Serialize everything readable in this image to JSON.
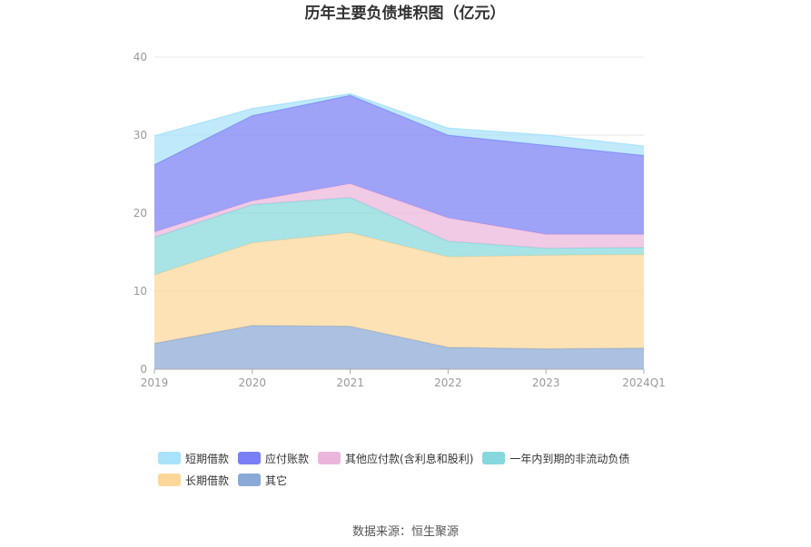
{
  "chart_data": {
    "type": "area",
    "stacked": true,
    "title": "历年主要负债堆积图（亿元）",
    "categories": [
      "2019",
      "2020",
      "2021",
      "2022",
      "2023",
      "2024Q1"
    ],
    "y_ticks": [
      "0",
      "10",
      "20",
      "30",
      "40"
    ],
    "ylim": [
      0,
      40
    ],
    "grid": true,
    "legend_position": "bottom",
    "series": [
      {
        "name": "其它",
        "color": "#8aa9d6",
        "values": [
          3.3,
          5.6,
          5.5,
          2.8,
          2.6,
          2.7
        ]
      },
      {
        "name": "长期借款",
        "color": "#fcd79a",
        "values": [
          8.8,
          10.6,
          12.0,
          11.6,
          12.0,
          12.0
        ]
      },
      {
        "name": "一年内到期的非流动负债",
        "color": "#86d8dc",
        "values": [
          4.8,
          4.9,
          4.5,
          2.0,
          0.9,
          0.9
        ]
      },
      {
        "name": "其他应付款(含利息和股利)",
        "color": "#ebb6db",
        "values": [
          0.7,
          0.5,
          1.8,
          3.0,
          1.8,
          1.7
        ]
      },
      {
        "name": "应付账款",
        "color": "#7a7ff5",
        "values": [
          8.6,
          10.9,
          11.3,
          10.6,
          11.4,
          10.1
        ]
      },
      {
        "name": "短期借款",
        "color": "#a8e2fb",
        "values": [
          3.7,
          0.9,
          0.2,
          0.9,
          1.3,
          1.2
        ]
      }
    ]
  },
  "legend": {
    "items": [
      {
        "label": "短期借款",
        "color": "#a8e2fb"
      },
      {
        "label": "应付账款",
        "color": "#7a7ff5"
      },
      {
        "label": "其他应付款(含利息和股利)",
        "color": "#ebb6db"
      },
      {
        "label": "一年内到期的非流动负债",
        "color": "#86d8dc"
      },
      {
        "label": "长期借款",
        "color": "#fcd79a"
      },
      {
        "label": "其它",
        "color": "#8aa9d6"
      }
    ]
  },
  "source": "数据来源：恒生聚源"
}
